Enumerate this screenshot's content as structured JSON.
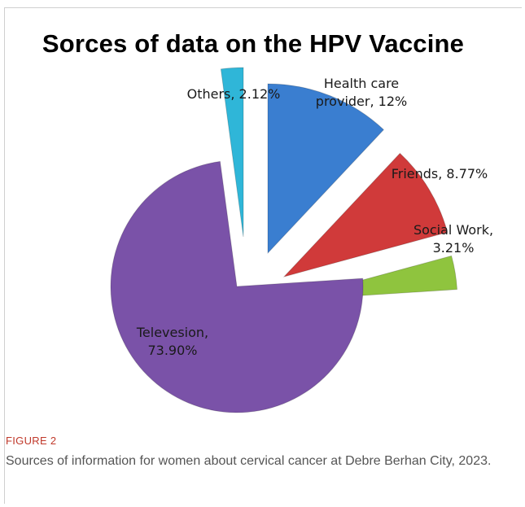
{
  "chart_data": {
    "type": "pie",
    "title": "Sorces of data on the HPV Vaccine",
    "slices": [
      {
        "label": "Health care provider",
        "value": 12,
        "display": "12%",
        "color": "#3a7ed0",
        "label_lines": [
          "Health care",
          "provider, 12%"
        ]
      },
      {
        "label": "Friends",
        "value": 8.77,
        "display": "8.77%",
        "color": "#d03a3a",
        "label_lines": [
          "Friends, 8.77%"
        ]
      },
      {
        "label": "Social Work",
        "value": 3.21,
        "display": "3.21%",
        "color": "#8fc43e",
        "label_lines": [
          "Social Work,",
          "3.21%"
        ]
      },
      {
        "label": "Televesion",
        "value": 73.9,
        "display": "73.90%",
        "color": "#7a52a8",
        "label_lines": [
          "Televesion,",
          "73.90%"
        ]
      },
      {
        "label": "Others",
        "value": 2.12,
        "display": "2.12%",
        "color": "#2fb6d8",
        "label_lines": [
          "Others, 2.12%"
        ]
      }
    ],
    "exploded": true,
    "legend": "none"
  },
  "figure": {
    "label": "FIGURE 2",
    "caption": "Sources of information for women about cervical cancer at Debre Berhan City, 2023."
  }
}
